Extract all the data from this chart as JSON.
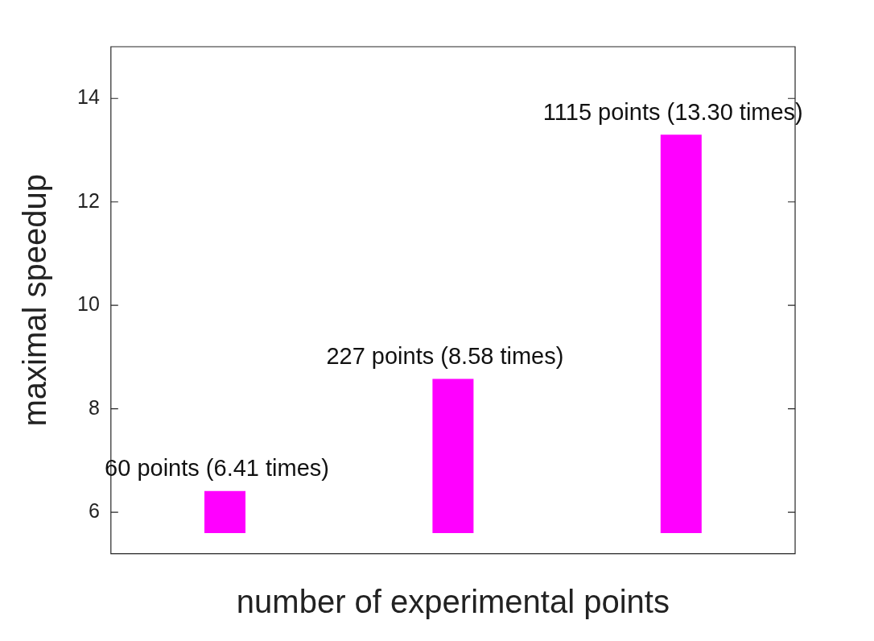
{
  "chart_data": {
    "type": "bar",
    "xlabel": "number of experimental points",
    "ylabel": "maximal speedup",
    "categories": [
      null,
      null,
      null
    ],
    "base": [
      5.6,
      5.6,
      5.6
    ],
    "values": [
      0.81,
      2.98,
      7.7
    ],
    "color": "#ff00ff",
    "ylim": [
      5.2,
      15
    ],
    "yticks": [
      6,
      8,
      10,
      12,
      14
    ],
    "grid": false,
    "legend": false,
    "annotations": [
      {
        "text": "60 points (6.41 times)",
        "y": 6.41
      },
      {
        "text": "227 points (8.58 times)",
        "y": 8.58
      },
      {
        "text": "1115 points (13.30 times)",
        "y": 13.3
      }
    ]
  }
}
